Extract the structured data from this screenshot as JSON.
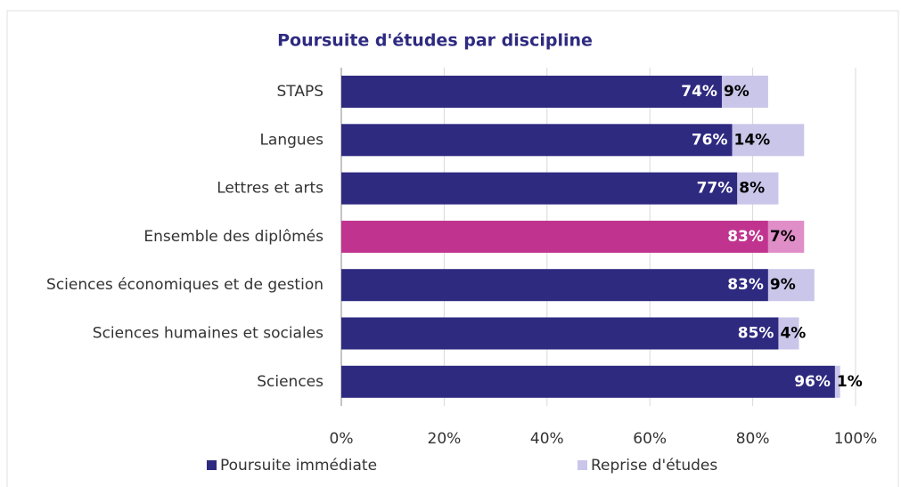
{
  "chart_data": {
    "type": "stacked_barh",
    "title": "Poursuite d'études par discipline",
    "categories": [
      "STAPS",
      "Langues",
      "Lettres et arts",
      "Ensemble des diplômés",
      "Sciences économiques et de gestion",
      "Sciences humaines et sociales",
      "Sciences"
    ],
    "series": [
      {
        "name": "Poursuite immédiate",
        "color": "#2e2a80",
        "values": [
          74,
          76,
          77,
          83,
          83,
          85,
          96
        ],
        "value_labels": [
          "74%",
          "76%",
          "77%",
          "83%",
          "83%",
          "85%",
          "96%"
        ]
      },
      {
        "name": "Reprise d'études",
        "color": "#c9c6ea",
        "values": [
          9,
          14,
          8,
          7,
          9,
          4,
          1
        ],
        "value_labels": [
          "9%",
          "14%",
          "8%",
          "7%",
          "9%",
          "4%",
          "1%"
        ]
      }
    ],
    "highlight": "Ensemble des diplômés",
    "highlight_colors": [
      "#c0348f",
      "#e08ec8"
    ],
    "xlim": [
      0,
      100
    ],
    "xticks": [
      {
        "value": 0,
        "label": "0%"
      },
      {
        "value": 20,
        "label": "20%"
      },
      {
        "value": 40,
        "label": "40%"
      },
      {
        "value": 60,
        "label": "60%"
      },
      {
        "value": 80,
        "label": "80%"
      },
      {
        "value": 100,
        "label": "100%"
      }
    ],
    "grid": true,
    "legend": "bottom"
  }
}
